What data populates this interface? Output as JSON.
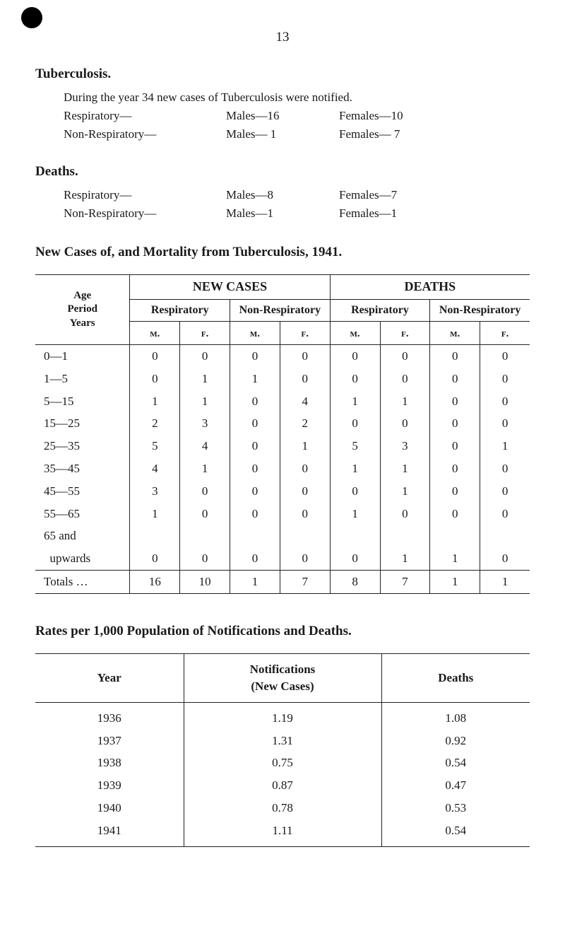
{
  "page_number": "13",
  "section1": {
    "heading": "Tuberculosis.",
    "intro": "During the year 34 new cases of Tuberculosis were notified.",
    "rows": [
      {
        "a": "Respiratory—",
        "b": "Males—16",
        "c": "Females—10"
      },
      {
        "a": "Non-Respiratory—",
        "b": "Males— 1",
        "c": "Females— 7"
      }
    ]
  },
  "section2": {
    "heading": "Deaths.",
    "rows": [
      {
        "a": "Respiratory—",
        "b": "Males—8",
        "c": "Females—7"
      },
      {
        "a": "Non-Respiratory—",
        "b": "Males—1",
        "c": "Females—1"
      }
    ]
  },
  "table1": {
    "title": "New Cases of, and Mortality from Tuberculosis, 1941.",
    "age_header1": "Age",
    "age_header2": "Period",
    "age_header3": "Years",
    "group_new": "NEW CASES",
    "group_deaths": "DEATHS",
    "sub_resp": "Respiratory",
    "sub_nonresp": "Non-Respiratory",
    "m": "m.",
    "f": "f.",
    "rows": [
      {
        "age": "0—1",
        "v": [
          "0",
          "0",
          "0",
          "0",
          "0",
          "0",
          "0",
          "0"
        ]
      },
      {
        "age": "1—5",
        "v": [
          "0",
          "1",
          "1",
          "0",
          "0",
          "0",
          "0",
          "0"
        ]
      },
      {
        "age": "5—15",
        "v": [
          "1",
          "1",
          "0",
          "4",
          "1",
          "1",
          "0",
          "0"
        ]
      },
      {
        "age": "15—25",
        "v": [
          "2",
          "3",
          "0",
          "2",
          "0",
          "0",
          "0",
          "0"
        ]
      },
      {
        "age": "25—35",
        "v": [
          "5",
          "4",
          "0",
          "1",
          "5",
          "3",
          "0",
          "1"
        ]
      },
      {
        "age": "35—45",
        "v": [
          "4",
          "1",
          "0",
          "0",
          "1",
          "1",
          "0",
          "0"
        ]
      },
      {
        "age": "45—55",
        "v": [
          "3",
          "0",
          "0",
          "0",
          "0",
          "1",
          "0",
          "0"
        ]
      },
      {
        "age": "55—65",
        "v": [
          "1",
          "0",
          "0",
          "0",
          "1",
          "0",
          "0",
          "0"
        ]
      },
      {
        "age": "65 and",
        "v": [
          "",
          "",
          "",
          "",
          "",
          "",
          "",
          ""
        ]
      },
      {
        "age": "  upwards",
        "v": [
          "0",
          "0",
          "0",
          "0",
          "0",
          "1",
          "1",
          "0"
        ]
      }
    ],
    "totals_label": "Totals  …",
    "totals": [
      "16",
      "10",
      "1",
      "7",
      "8",
      "7",
      "1",
      "1"
    ]
  },
  "table2": {
    "title": "Rates per 1,000 Population of Notifications and Deaths.",
    "col_year": "Year",
    "col_notif1": "Notifications",
    "col_notif2": "(New Cases)",
    "col_deaths": "Deaths",
    "rows": [
      {
        "year": "1936",
        "notif": "1.19",
        "deaths": "1.08"
      },
      {
        "year": "1937",
        "notif": "1.31",
        "deaths": "0.92"
      },
      {
        "year": "1938",
        "notif": "0.75",
        "deaths": "0.54"
      },
      {
        "year": "1939",
        "notif": "0.87",
        "deaths": "0.47"
      },
      {
        "year": "1940",
        "notif": "0.78",
        "deaths": "0.53"
      },
      {
        "year": "1941",
        "notif": "1.11",
        "deaths": "0.54"
      }
    ]
  }
}
